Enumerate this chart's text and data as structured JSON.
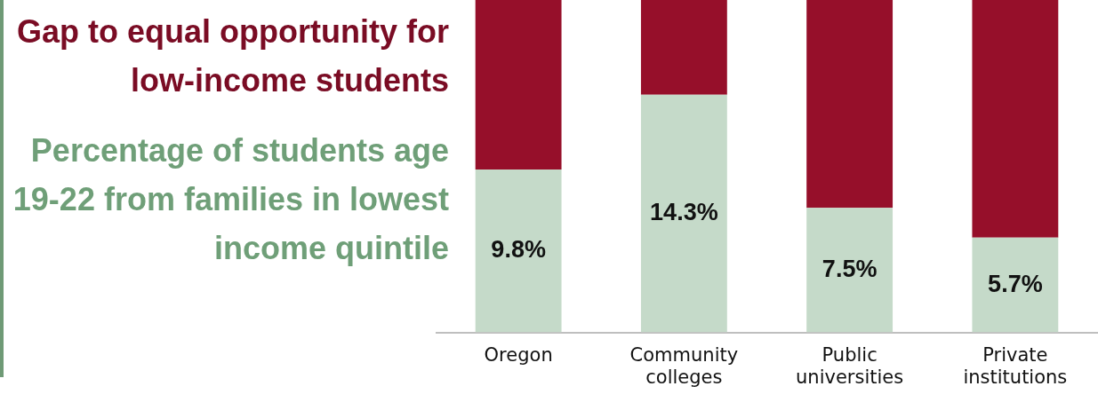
{
  "chart_data": {
    "type": "bar",
    "stacked": true,
    "legend": "left",
    "grid": false,
    "categories": [
      "Oregon",
      "Community colleges",
      "Public universities",
      "Private institutions"
    ],
    "series": [
      {
        "name": "Percentage of students age 19-22 from families in lowest income quintile",
        "color": "#c5dac9",
        "values": [
          9.8,
          14.3,
          7.5,
          5.7
        ],
        "value_labels": [
          "9.8%",
          "14.3%",
          "7.5%",
          "5.7%"
        ]
      },
      {
        "name": "Gap to equal opportunity for low-income students",
        "color": "#960f2a",
        "values": [
          10.2,
          5.7,
          12.5,
          14.3
        ]
      }
    ]
  }
}
